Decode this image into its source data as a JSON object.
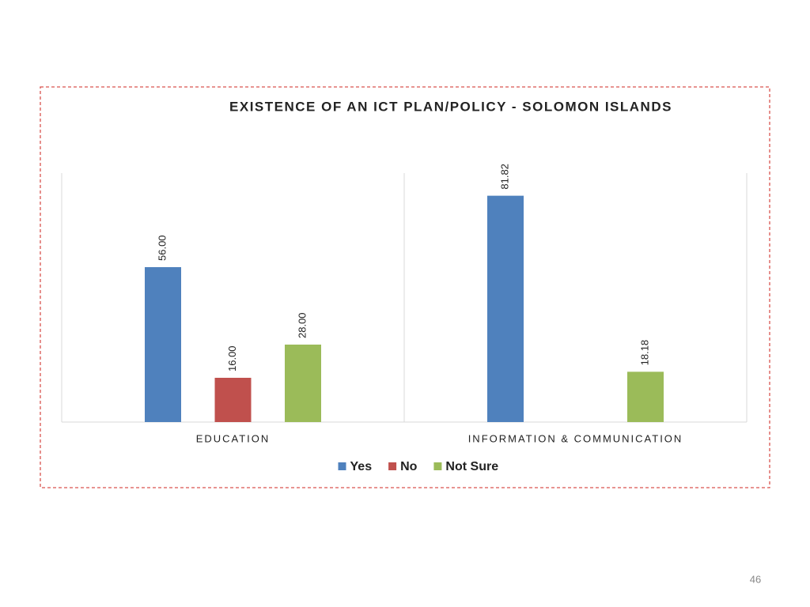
{
  "chart_data": {
    "type": "bar",
    "title": "EXISTENCE OF AN ICT PLAN/POLICY - SOLOMON ISLANDS",
    "categories": [
      "EDUCATION",
      "INFORMATION & COMMUNICATION"
    ],
    "series": [
      {
        "name": "Yes",
        "color": "#4f81bd",
        "values": [
          56,
          81.82
        ],
        "value_labels": [
          "56.00",
          "81.82"
        ]
      },
      {
        "name": "No",
        "color": "#c0504d",
        "values": [
          16,
          null
        ],
        "value_labels": [
          "16.00",
          null
        ]
      },
      {
        "name": "Not Sure",
        "color": "#9bbb59",
        "values": [
          28,
          18.18
        ],
        "value_labels": [
          "28.00",
          "18.18"
        ]
      }
    ],
    "ylim": [
      0,
      90
    ],
    "grid": false,
    "legend": "bottom"
  },
  "page_number": "46"
}
